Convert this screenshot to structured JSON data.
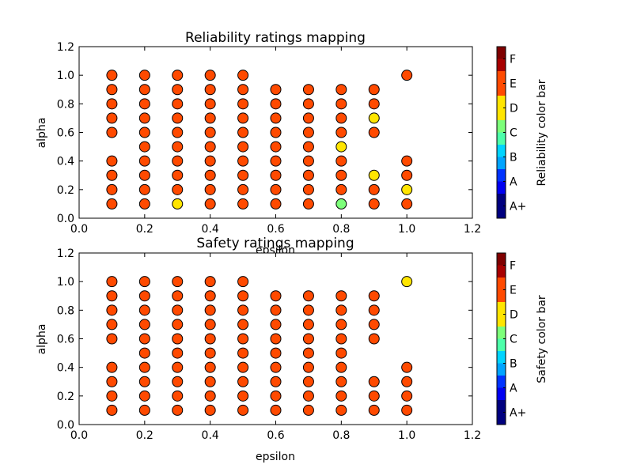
{
  "colors": {
    "A+": "#00007f",
    "A": "#0033ff",
    "B": "#00ccff",
    "C": "#7dff7a",
    "D": "#ffe500",
    "E": "#ff4a00",
    "F": "#7f0000"
  },
  "chart_data": [
    {
      "type": "scatter",
      "title": "Reliability ratings mapping",
      "xlabel": "epsilon",
      "ylabel": "alpha",
      "xlim": [
        0.0,
        1.2
      ],
      "ylim": [
        0.0,
        1.2
      ],
      "xticks": [
        "0.0",
        "0.2",
        "0.4",
        "0.6",
        "0.8",
        "1.0",
        "1.2"
      ],
      "yticks": [
        "0.0",
        "0.2",
        "0.4",
        "0.6",
        "0.8",
        "1.0",
        "1.2"
      ],
      "colorbar_label": "Reliability color bar",
      "colorbar_ticks": [
        "A+",
        "A",
        "B",
        "C",
        "D",
        "E",
        "F"
      ],
      "points": [
        {
          "x": 0.1,
          "y": 1.0,
          "r": "E"
        },
        {
          "x": 0.1,
          "y": 0.9,
          "r": "E"
        },
        {
          "x": 0.1,
          "y": 0.8,
          "r": "E"
        },
        {
          "x": 0.1,
          "y": 0.7,
          "r": "E"
        },
        {
          "x": 0.1,
          "y": 0.6,
          "r": "E"
        },
        {
          "x": 0.1,
          "y": 0.4,
          "r": "E"
        },
        {
          "x": 0.1,
          "y": 0.3,
          "r": "E"
        },
        {
          "x": 0.1,
          "y": 0.2,
          "r": "E"
        },
        {
          "x": 0.1,
          "y": 0.1,
          "r": "E"
        },
        {
          "x": 0.2,
          "y": 1.0,
          "r": "E"
        },
        {
          "x": 0.2,
          "y": 0.9,
          "r": "E"
        },
        {
          "x": 0.2,
          "y": 0.8,
          "r": "E"
        },
        {
          "x": 0.2,
          "y": 0.7,
          "r": "E"
        },
        {
          "x": 0.2,
          "y": 0.6,
          "r": "E"
        },
        {
          "x": 0.2,
          "y": 0.5,
          "r": "E"
        },
        {
          "x": 0.2,
          "y": 0.4,
          "r": "E"
        },
        {
          "x": 0.2,
          "y": 0.3,
          "r": "E"
        },
        {
          "x": 0.2,
          "y": 0.2,
          "r": "E"
        },
        {
          "x": 0.2,
          "y": 0.1,
          "r": "E"
        },
        {
          "x": 0.3,
          "y": 1.0,
          "r": "E"
        },
        {
          "x": 0.3,
          "y": 0.9,
          "r": "E"
        },
        {
          "x": 0.3,
          "y": 0.8,
          "r": "E"
        },
        {
          "x": 0.3,
          "y": 0.7,
          "r": "E"
        },
        {
          "x": 0.3,
          "y": 0.6,
          "r": "E"
        },
        {
          "x": 0.3,
          "y": 0.5,
          "r": "E"
        },
        {
          "x": 0.3,
          "y": 0.4,
          "r": "E"
        },
        {
          "x": 0.3,
          "y": 0.3,
          "r": "E"
        },
        {
          "x": 0.3,
          "y": 0.2,
          "r": "E"
        },
        {
          "x": 0.3,
          "y": 0.1,
          "r": "D"
        },
        {
          "x": 0.4,
          "y": 1.0,
          "r": "E"
        },
        {
          "x": 0.4,
          "y": 0.9,
          "r": "E"
        },
        {
          "x": 0.4,
          "y": 0.8,
          "r": "E"
        },
        {
          "x": 0.4,
          "y": 0.7,
          "r": "E"
        },
        {
          "x": 0.4,
          "y": 0.6,
          "r": "E"
        },
        {
          "x": 0.4,
          "y": 0.5,
          "r": "E"
        },
        {
          "x": 0.4,
          "y": 0.4,
          "r": "E"
        },
        {
          "x": 0.4,
          "y": 0.3,
          "r": "E"
        },
        {
          "x": 0.4,
          "y": 0.2,
          "r": "E"
        },
        {
          "x": 0.4,
          "y": 0.1,
          "r": "E"
        },
        {
          "x": 0.5,
          "y": 1.0,
          "r": "E"
        },
        {
          "x": 0.5,
          "y": 0.9,
          "r": "E"
        },
        {
          "x": 0.5,
          "y": 0.8,
          "r": "E"
        },
        {
          "x": 0.5,
          "y": 0.7,
          "r": "E"
        },
        {
          "x": 0.5,
          "y": 0.6,
          "r": "E"
        },
        {
          "x": 0.5,
          "y": 0.5,
          "r": "E"
        },
        {
          "x": 0.5,
          "y": 0.4,
          "r": "E"
        },
        {
          "x": 0.5,
          "y": 0.3,
          "r": "E"
        },
        {
          "x": 0.5,
          "y": 0.2,
          "r": "E"
        },
        {
          "x": 0.5,
          "y": 0.1,
          "r": "E"
        },
        {
          "x": 0.6,
          "y": 0.9,
          "r": "E"
        },
        {
          "x": 0.6,
          "y": 0.8,
          "r": "E"
        },
        {
          "x": 0.6,
          "y": 0.7,
          "r": "E"
        },
        {
          "x": 0.6,
          "y": 0.6,
          "r": "E"
        },
        {
          "x": 0.6,
          "y": 0.5,
          "r": "E"
        },
        {
          "x": 0.6,
          "y": 0.4,
          "r": "E"
        },
        {
          "x": 0.6,
          "y": 0.3,
          "r": "E"
        },
        {
          "x": 0.6,
          "y": 0.2,
          "r": "E"
        },
        {
          "x": 0.6,
          "y": 0.1,
          "r": "E"
        },
        {
          "x": 0.7,
          "y": 0.9,
          "r": "E"
        },
        {
          "x": 0.7,
          "y": 0.8,
          "r": "E"
        },
        {
          "x": 0.7,
          "y": 0.7,
          "r": "E"
        },
        {
          "x": 0.7,
          "y": 0.6,
          "r": "E"
        },
        {
          "x": 0.7,
          "y": 0.5,
          "r": "E"
        },
        {
          "x": 0.7,
          "y": 0.4,
          "r": "E"
        },
        {
          "x": 0.7,
          "y": 0.3,
          "r": "E"
        },
        {
          "x": 0.7,
          "y": 0.2,
          "r": "E"
        },
        {
          "x": 0.7,
          "y": 0.1,
          "r": "E"
        },
        {
          "x": 0.8,
          "y": 0.9,
          "r": "E"
        },
        {
          "x": 0.8,
          "y": 0.8,
          "r": "E"
        },
        {
          "x": 0.8,
          "y": 0.7,
          "r": "E"
        },
        {
          "x": 0.8,
          "y": 0.6,
          "r": "E"
        },
        {
          "x": 0.8,
          "y": 0.5,
          "r": "D"
        },
        {
          "x": 0.8,
          "y": 0.4,
          "r": "E"
        },
        {
          "x": 0.8,
          "y": 0.3,
          "r": "E"
        },
        {
          "x": 0.8,
          "y": 0.2,
          "r": "E"
        },
        {
          "x": 0.8,
          "y": 0.1,
          "r": "C"
        },
        {
          "x": 0.9,
          "y": 0.9,
          "r": "E"
        },
        {
          "x": 0.9,
          "y": 0.8,
          "r": "E"
        },
        {
          "x": 0.9,
          "y": 0.7,
          "r": "D"
        },
        {
          "x": 0.9,
          "y": 0.6,
          "r": "E"
        },
        {
          "x": 0.9,
          "y": 0.3,
          "r": "D"
        },
        {
          "x": 0.9,
          "y": 0.2,
          "r": "E"
        },
        {
          "x": 0.9,
          "y": 0.1,
          "r": "E"
        },
        {
          "x": 1.0,
          "y": 1.0,
          "r": "E"
        },
        {
          "x": 1.0,
          "y": 0.4,
          "r": "E"
        },
        {
          "x": 1.0,
          "y": 0.3,
          "r": "E"
        },
        {
          "x": 1.0,
          "y": 0.2,
          "r": "D"
        },
        {
          "x": 1.0,
          "y": 0.1,
          "r": "E"
        }
      ]
    },
    {
      "type": "scatter",
      "title": "Safety ratings mapping",
      "xlabel": "epsilon",
      "ylabel": "alpha",
      "xlim": [
        0.0,
        1.2
      ],
      "ylim": [
        0.0,
        1.2
      ],
      "xticks": [
        "0.0",
        "0.2",
        "0.4",
        "0.6",
        "0.8",
        "1.0",
        "1.2"
      ],
      "yticks": [
        "0.0",
        "0.2",
        "0.4",
        "0.6",
        "0.8",
        "1.0",
        "1.2"
      ],
      "colorbar_label": "Safety color bar",
      "colorbar_ticks": [
        "A+",
        "A",
        "B",
        "C",
        "D",
        "E",
        "F"
      ],
      "points": [
        {
          "x": 0.1,
          "y": 1.0,
          "r": "E"
        },
        {
          "x": 0.1,
          "y": 0.9,
          "r": "E"
        },
        {
          "x": 0.1,
          "y": 0.8,
          "r": "E"
        },
        {
          "x": 0.1,
          "y": 0.7,
          "r": "E"
        },
        {
          "x": 0.1,
          "y": 0.6,
          "r": "E"
        },
        {
          "x": 0.1,
          "y": 0.4,
          "r": "E"
        },
        {
          "x": 0.1,
          "y": 0.3,
          "r": "E"
        },
        {
          "x": 0.1,
          "y": 0.2,
          "r": "E"
        },
        {
          "x": 0.1,
          "y": 0.1,
          "r": "E"
        },
        {
          "x": 0.2,
          "y": 1.0,
          "r": "E"
        },
        {
          "x": 0.2,
          "y": 0.9,
          "r": "E"
        },
        {
          "x": 0.2,
          "y": 0.8,
          "r": "E"
        },
        {
          "x": 0.2,
          "y": 0.7,
          "r": "E"
        },
        {
          "x": 0.2,
          "y": 0.6,
          "r": "E"
        },
        {
          "x": 0.2,
          "y": 0.5,
          "r": "E"
        },
        {
          "x": 0.2,
          "y": 0.4,
          "r": "E"
        },
        {
          "x": 0.2,
          "y": 0.3,
          "r": "E"
        },
        {
          "x": 0.2,
          "y": 0.2,
          "r": "E"
        },
        {
          "x": 0.2,
          "y": 0.1,
          "r": "E"
        },
        {
          "x": 0.3,
          "y": 1.0,
          "r": "E"
        },
        {
          "x": 0.3,
          "y": 0.9,
          "r": "E"
        },
        {
          "x": 0.3,
          "y": 0.8,
          "r": "E"
        },
        {
          "x": 0.3,
          "y": 0.7,
          "r": "E"
        },
        {
          "x": 0.3,
          "y": 0.6,
          "r": "E"
        },
        {
          "x": 0.3,
          "y": 0.5,
          "r": "E"
        },
        {
          "x": 0.3,
          "y": 0.4,
          "r": "E"
        },
        {
          "x": 0.3,
          "y": 0.3,
          "r": "E"
        },
        {
          "x": 0.3,
          "y": 0.2,
          "r": "E"
        },
        {
          "x": 0.3,
          "y": 0.1,
          "r": "E"
        },
        {
          "x": 0.4,
          "y": 1.0,
          "r": "E"
        },
        {
          "x": 0.4,
          "y": 0.9,
          "r": "E"
        },
        {
          "x": 0.4,
          "y": 0.8,
          "r": "E"
        },
        {
          "x": 0.4,
          "y": 0.7,
          "r": "E"
        },
        {
          "x": 0.4,
          "y": 0.6,
          "r": "E"
        },
        {
          "x": 0.4,
          "y": 0.5,
          "r": "E"
        },
        {
          "x": 0.4,
          "y": 0.4,
          "r": "E"
        },
        {
          "x": 0.4,
          "y": 0.3,
          "r": "E"
        },
        {
          "x": 0.4,
          "y": 0.2,
          "r": "E"
        },
        {
          "x": 0.4,
          "y": 0.1,
          "r": "E"
        },
        {
          "x": 0.5,
          "y": 1.0,
          "r": "E"
        },
        {
          "x": 0.5,
          "y": 0.9,
          "r": "E"
        },
        {
          "x": 0.5,
          "y": 0.8,
          "r": "E"
        },
        {
          "x": 0.5,
          "y": 0.7,
          "r": "E"
        },
        {
          "x": 0.5,
          "y": 0.6,
          "r": "E"
        },
        {
          "x": 0.5,
          "y": 0.5,
          "r": "E"
        },
        {
          "x": 0.5,
          "y": 0.4,
          "r": "E"
        },
        {
          "x": 0.5,
          "y": 0.3,
          "r": "E"
        },
        {
          "x": 0.5,
          "y": 0.2,
          "r": "E"
        },
        {
          "x": 0.5,
          "y": 0.1,
          "r": "E"
        },
        {
          "x": 0.6,
          "y": 0.9,
          "r": "E"
        },
        {
          "x": 0.6,
          "y": 0.8,
          "r": "E"
        },
        {
          "x": 0.6,
          "y": 0.7,
          "r": "E"
        },
        {
          "x": 0.6,
          "y": 0.6,
          "r": "E"
        },
        {
          "x": 0.6,
          "y": 0.5,
          "r": "E"
        },
        {
          "x": 0.6,
          "y": 0.4,
          "r": "E"
        },
        {
          "x": 0.6,
          "y": 0.3,
          "r": "E"
        },
        {
          "x": 0.6,
          "y": 0.2,
          "r": "E"
        },
        {
          "x": 0.6,
          "y": 0.1,
          "r": "E"
        },
        {
          "x": 0.7,
          "y": 0.9,
          "r": "E"
        },
        {
          "x": 0.7,
          "y": 0.8,
          "r": "E"
        },
        {
          "x": 0.7,
          "y": 0.7,
          "r": "E"
        },
        {
          "x": 0.7,
          "y": 0.6,
          "r": "E"
        },
        {
          "x": 0.7,
          "y": 0.5,
          "r": "E"
        },
        {
          "x": 0.7,
          "y": 0.4,
          "r": "E"
        },
        {
          "x": 0.7,
          "y": 0.3,
          "r": "E"
        },
        {
          "x": 0.7,
          "y": 0.2,
          "r": "E"
        },
        {
          "x": 0.7,
          "y": 0.1,
          "r": "E"
        },
        {
          "x": 0.8,
          "y": 0.9,
          "r": "E"
        },
        {
          "x": 0.8,
          "y": 0.8,
          "r": "E"
        },
        {
          "x": 0.8,
          "y": 0.7,
          "r": "E"
        },
        {
          "x": 0.8,
          "y": 0.6,
          "r": "E"
        },
        {
          "x": 0.8,
          "y": 0.5,
          "r": "E"
        },
        {
          "x": 0.8,
          "y": 0.4,
          "r": "E"
        },
        {
          "x": 0.8,
          "y": 0.3,
          "r": "E"
        },
        {
          "x": 0.8,
          "y": 0.2,
          "r": "E"
        },
        {
          "x": 0.8,
          "y": 0.1,
          "r": "E"
        },
        {
          "x": 0.9,
          "y": 0.9,
          "r": "E"
        },
        {
          "x": 0.9,
          "y": 0.8,
          "r": "E"
        },
        {
          "x": 0.9,
          "y": 0.7,
          "r": "E"
        },
        {
          "x": 0.9,
          "y": 0.6,
          "r": "E"
        },
        {
          "x": 0.9,
          "y": 0.3,
          "r": "E"
        },
        {
          "x": 0.9,
          "y": 0.2,
          "r": "E"
        },
        {
          "x": 0.9,
          "y": 0.1,
          "r": "E"
        },
        {
          "x": 1.0,
          "y": 1.0,
          "r": "D"
        },
        {
          "x": 1.0,
          "y": 0.4,
          "r": "E"
        },
        {
          "x": 1.0,
          "y": 0.3,
          "r": "E"
        },
        {
          "x": 1.0,
          "y": 0.2,
          "r": "E"
        },
        {
          "x": 1.0,
          "y": 0.1,
          "r": "E"
        }
      ]
    }
  ]
}
